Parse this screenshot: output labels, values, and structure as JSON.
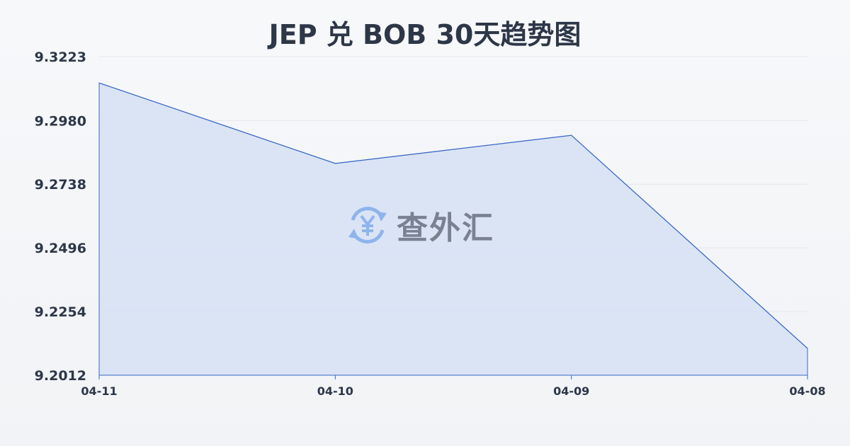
{
  "chart_data": {
    "type": "area",
    "title": "JEP 兑 BOB 30天趋势图",
    "categories": [
      "04-11",
      "04-10",
      "04-09",
      "04-08"
    ],
    "series": [
      {
        "values": [
          9.3123,
          9.2817,
          9.2924,
          9.2114
        ]
      }
    ],
    "yticks": [
      "9.3223",
      "9.2980",
      "9.2738",
      "9.2496",
      "9.2254",
      "9.2012"
    ],
    "ylim": [
      9.2012,
      9.3223
    ],
    "grid": true,
    "colors": {
      "line": "#3a68c8",
      "fill": "#d6e1f5",
      "grid": "#e3e6eb",
      "text": "#2d3748"
    }
  },
  "watermark": {
    "text": "查外汇",
    "icon": "yen-exchange-icon"
  }
}
